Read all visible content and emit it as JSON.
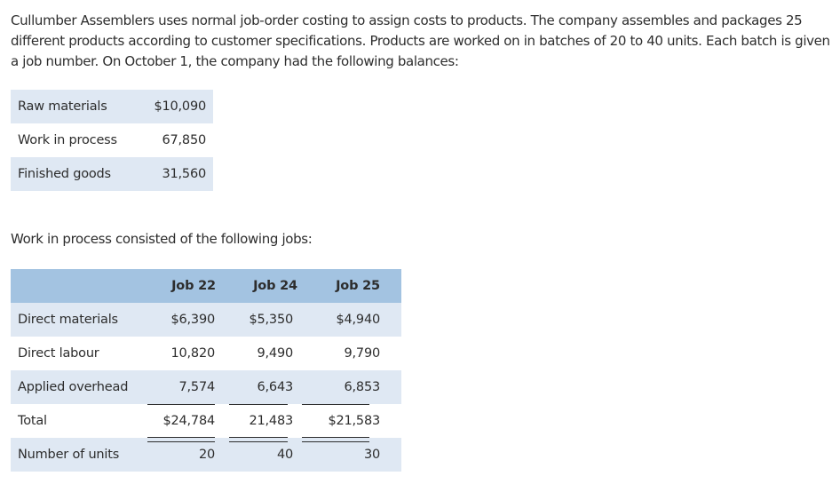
{
  "intro_text": "Cullumber Assemblers uses normal job-order costing to assign costs to products. The company assembles and packages 25 different products according to customer specifications. Products are worked on in batches of 20 to 40 units. Each batch is given a job number. On October 1, the company had the following balances:",
  "balances": [
    {
      "label": "Raw materials",
      "value": "$10,090"
    },
    {
      "label": "Work in process",
      "value": "67,850"
    },
    {
      "label": "Finished goods",
      "value": "31,560"
    }
  ],
  "jobs_intro": "Work in process consisted of the following jobs:",
  "jobs": {
    "headers": [
      "Job 22",
      "Job 24",
      "Job 25"
    ],
    "rows": [
      {
        "label": "Direct materials",
        "values": [
          "$6,390",
          "$5,350",
          "$4,940"
        ]
      },
      {
        "label": "Direct labour",
        "values": [
          "10,820",
          "9,490",
          "9,790"
        ]
      },
      {
        "label": "Applied overhead",
        "values": [
          "7,574",
          "6,643",
          "6,853"
        ]
      },
      {
        "label": "Total",
        "values": [
          "$24,784",
          "21,483",
          "$21,583"
        ]
      },
      {
        "label": "Number of units",
        "values": [
          "20",
          "40",
          "30"
        ]
      }
    ]
  },
  "colors": {
    "header_bg": "#a3c3e1",
    "stripe_bg": "#dfe8f3",
    "text": "#2d2d2d"
  }
}
